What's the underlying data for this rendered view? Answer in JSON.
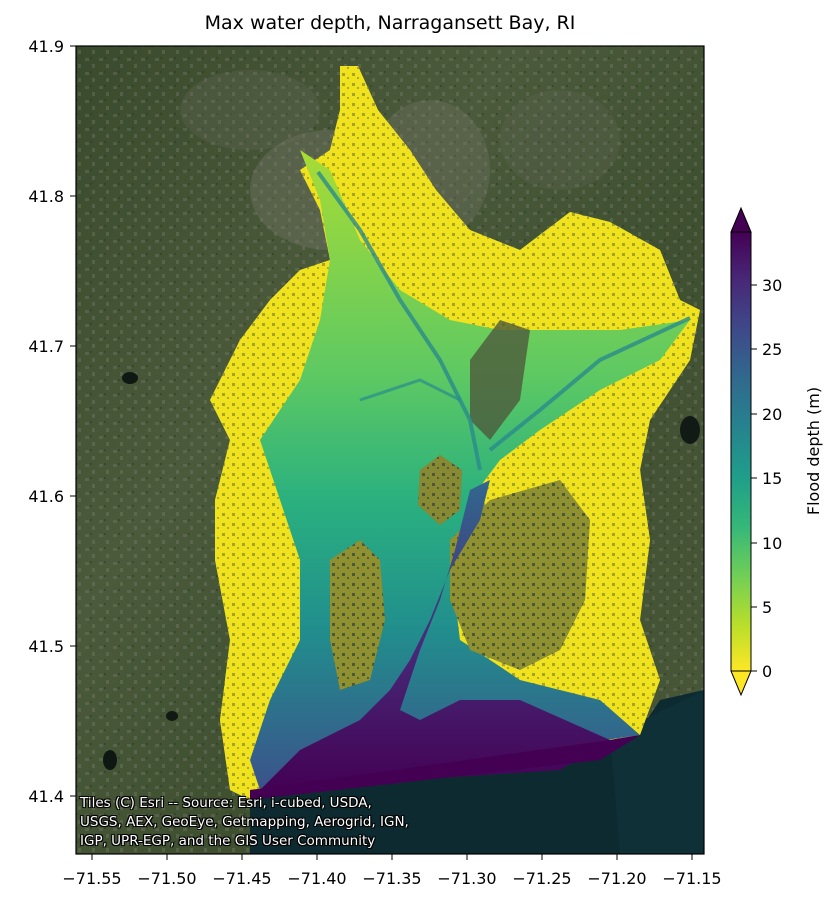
{
  "title": "Max water depth, Narragansett Bay, RI",
  "map": {
    "basemap": "satellite imagery",
    "x_ticks": [
      "−71.55",
      "−71.50",
      "−71.45",
      "−71.40",
      "−71.35",
      "−71.30",
      "−71.25",
      "−71.20",
      "−71.15"
    ],
    "y_ticks": [
      "41.9",
      "41.8",
      "41.7",
      "41.6",
      "41.5",
      "41.4"
    ],
    "attribution": [
      "Tiles (C) Esri -- Source: Esri, i-cubed, USDA,",
      "USGS, AEX, GeoEye, Getmapping, Aerogrid, IGN,",
      "IGP, UPR-EGP, and the GIS User Community"
    ]
  },
  "colorbar": {
    "label": "Flood depth (m)",
    "ticks": [
      "0",
      "5",
      "10",
      "15",
      "20",
      "25",
      "30"
    ],
    "colormap": "viridis_r",
    "extend": "both",
    "colors": [
      "#fde725",
      "#b5de2b",
      "#6ece58",
      "#35b779",
      "#1f9e89",
      "#26828e",
      "#31688e",
      "#3e4989",
      "#482878",
      "#440154"
    ]
  }
}
